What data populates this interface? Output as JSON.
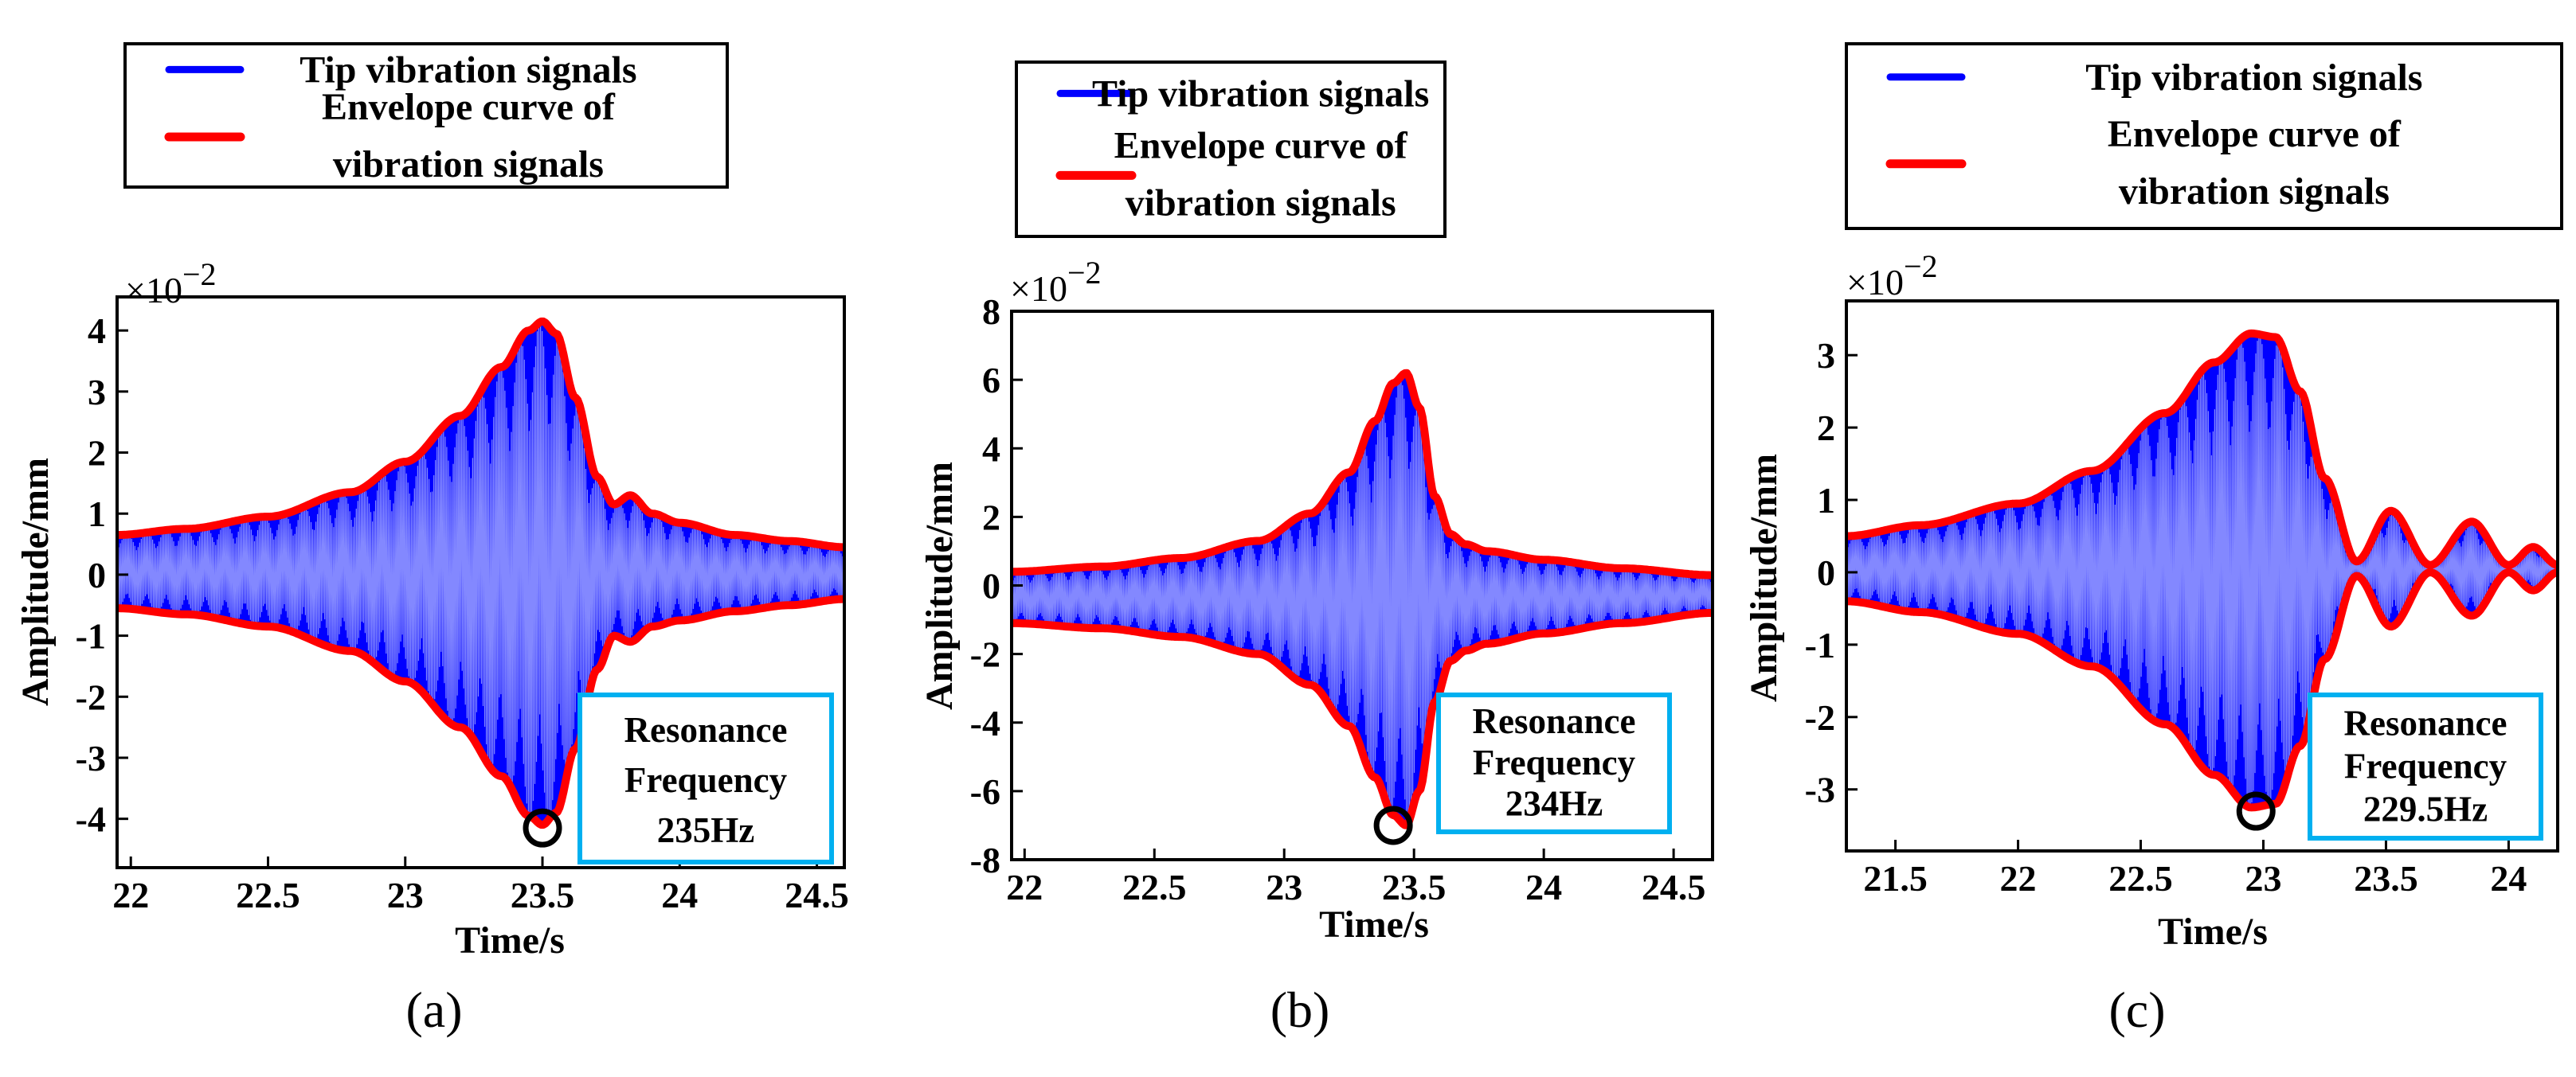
{
  "figure": {
    "panels": [
      {
        "label": "(a)",
        "legend": {
          "line1": "Tip vibration signals",
          "line2a": "Envelope curve of",
          "line2b": "vibration signals"
        },
        "annotation": {
          "line1": "Resonance",
          "line2": "Frequency",
          "line3": "235Hz"
        },
        "exponent": {
          "base": "×10",
          "power": "−2"
        }
      },
      {
        "label": "(b)",
        "legend": {
          "line1": "Tip vibration signals",
          "line2a": "Envelope curve of",
          "line2b": "vibration signals"
        },
        "annotation": {
          "line1": "Resonance",
          "line2": "Frequency",
          "line3": "234Hz"
        },
        "exponent": {
          "base": "×10",
          "power": "−2"
        }
      },
      {
        "label": "(c)",
        "legend": {
          "line1": "Tip vibration signals",
          "line2a": "Envelope curve of",
          "line2b": "vibration signals"
        },
        "annotation": {
          "line1": "Resonance",
          "line2": "Frequency",
          "line3": "229.5Hz"
        },
        "exponent": {
          "base": "×10",
          "power": "−2"
        }
      }
    ]
  },
  "colors": {
    "signal": "#0000ff",
    "envelope": "#ff0000",
    "annotation_border": "#00b0f0",
    "marker": "#000000"
  },
  "chart_data": [
    {
      "type": "line",
      "title": "(a)",
      "xlabel": "Time/s",
      "ylabel": "Amplitude/mm",
      "y_scale_note": "×10^-2",
      "xlim": [
        21.95,
        24.6
      ],
      "ylim": [
        -4.8,
        4.55
      ],
      "xticks": [
        "22",
        "22.5",
        "23",
        "23.5",
        "24",
        "24.5"
      ],
      "yticks": [
        "-4",
        "-3",
        "-2",
        "-1",
        "0",
        "1",
        "2",
        "3",
        "4"
      ],
      "series": [
        {
          "name": "Envelope curve of vibration signals (upper)",
          "x": [
            21.95,
            22.2,
            22.5,
            22.8,
            23.0,
            23.2,
            23.35,
            23.45,
            23.5,
            23.55,
            23.62,
            23.7,
            23.76,
            23.82,
            23.9,
            24.0,
            24.2,
            24.4,
            24.6
          ],
          "y": [
            0.65,
            0.75,
            0.95,
            1.35,
            1.85,
            2.6,
            3.4,
            4.0,
            4.15,
            3.95,
            2.9,
            1.6,
            1.15,
            1.3,
            1.0,
            0.85,
            0.65,
            0.55,
            0.45
          ]
        },
        {
          "name": "Envelope curve of vibration signals (lower)",
          "x": [
            21.95,
            22.2,
            22.5,
            22.8,
            23.0,
            23.2,
            23.35,
            23.45,
            23.5,
            23.55,
            23.62,
            23.7,
            23.76,
            23.82,
            23.9,
            24.0,
            24.2,
            24.4,
            24.6
          ],
          "y": [
            -0.55,
            -0.65,
            -0.85,
            -1.25,
            -1.75,
            -2.5,
            -3.3,
            -3.95,
            -4.1,
            -3.9,
            -2.85,
            -1.55,
            -1.0,
            -1.1,
            -0.85,
            -0.75,
            -0.6,
            -0.5,
            -0.4
          ]
        }
      ],
      "marker": {
        "x": 23.5,
        "y": -4.15
      },
      "annotation": "Resonance Frequency 235Hz"
    },
    {
      "type": "line",
      "title": "(b)",
      "xlabel": "Time/s",
      "ylabel": "Amplitude/mm",
      "y_scale_note": "×10^-2",
      "xlim": [
        21.95,
        24.65
      ],
      "ylim": [
        -8,
        8
      ],
      "xticks": [
        "22",
        "22.5",
        "23",
        "23.5",
        "24",
        "24.5"
      ],
      "yticks": [
        "-8",
        "-6",
        "-4",
        "-2",
        "0",
        "2",
        "4",
        "6",
        "8"
      ],
      "series": [
        {
          "name": "Envelope curve of vibration signals (upper)",
          "x": [
            21.95,
            22.3,
            22.6,
            22.9,
            23.1,
            23.25,
            23.35,
            23.42,
            23.47,
            23.52,
            23.58,
            23.64,
            23.7,
            23.78,
            24.0,
            24.3,
            24.65
          ],
          "y": [
            0.4,
            0.55,
            0.8,
            1.3,
            2.1,
            3.3,
            4.8,
            5.9,
            6.2,
            5.2,
            2.6,
            1.5,
            1.2,
            1.0,
            0.75,
            0.5,
            0.3
          ]
        },
        {
          "name": "Envelope curve of vibration signals (lower)",
          "x": [
            21.95,
            22.3,
            22.6,
            22.9,
            23.1,
            23.25,
            23.35,
            23.42,
            23.47,
            23.52,
            23.58,
            23.64,
            23.7,
            23.78,
            24.0,
            24.3,
            24.65
          ],
          "y": [
            -1.1,
            -1.25,
            -1.5,
            -2.0,
            -2.9,
            -4.1,
            -5.6,
            -6.7,
            -7.0,
            -6.0,
            -3.4,
            -2.2,
            -1.9,
            -1.7,
            -1.4,
            -1.1,
            -0.8
          ]
        }
      ],
      "marker": {
        "x": 23.42,
        "y": -7.0
      },
      "annotation": "Resonance Frequency 234Hz"
    },
    {
      "type": "line",
      "title": "(c)",
      "xlabel": "Time/s",
      "ylabel": "Amplitude/mm",
      "y_scale_note": "×10^-2",
      "xlim": [
        21.3,
        24.2
      ],
      "ylim": [
        -3.85,
        3.75
      ],
      "xticks": [
        "21.5",
        "22",
        "22.5",
        "23",
        "23.5",
        "24"
      ],
      "yticks": [
        "-3",
        "-2",
        "-1",
        "0",
        "1",
        "2",
        "3"
      ],
      "series": [
        {
          "name": "Envelope curve of vibration signals (upper)",
          "x": [
            21.3,
            21.6,
            22.0,
            22.3,
            22.6,
            22.8,
            22.95,
            23.05,
            23.15,
            23.25,
            23.38,
            23.52,
            23.68,
            23.85,
            24.0,
            24.1,
            24.2
          ],
          "y": [
            0.5,
            0.65,
            0.95,
            1.4,
            2.2,
            2.9,
            3.3,
            3.25,
            2.5,
            1.3,
            0.15,
            0.85,
            0.1,
            0.7,
            0.1,
            0.35,
            0.1
          ]
        },
        {
          "name": "Envelope curve of vibration signals (lower)",
          "x": [
            21.3,
            21.6,
            22.0,
            22.3,
            22.6,
            22.8,
            22.95,
            23.05,
            23.15,
            23.25,
            23.38,
            23.52,
            23.68,
            23.85,
            24.0,
            24.1,
            24.2
          ],
          "y": [
            -0.4,
            -0.55,
            -0.85,
            -1.3,
            -2.1,
            -2.8,
            -3.25,
            -3.2,
            -2.4,
            -1.2,
            -0.05,
            -0.75,
            0.0,
            -0.6,
            0.0,
            -0.25,
            0.0
          ]
        }
      ],
      "marker": {
        "x": 22.97,
        "y": -3.3
      },
      "annotation": "Resonance Frequency 229.5Hz"
    }
  ]
}
